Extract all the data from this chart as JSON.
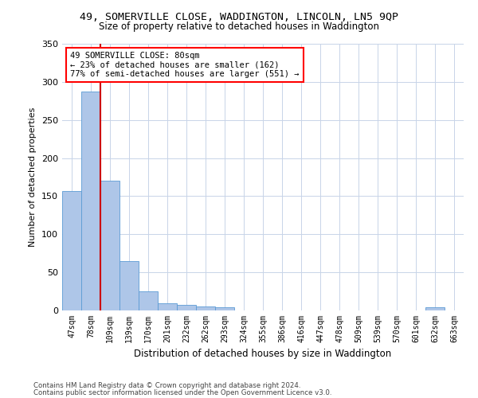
{
  "title1": "49, SOMERVILLE CLOSE, WADDINGTON, LINCOLN, LN5 9QP",
  "title2": "Size of property relative to detached houses in Waddington",
  "xlabel": "Distribution of detached houses by size in Waddington",
  "ylabel": "Number of detached properties",
  "bar_labels": [
    "47sqm",
    "78sqm",
    "109sqm",
    "139sqm",
    "170sqm",
    "201sqm",
    "232sqm",
    "262sqm",
    "293sqm",
    "324sqm",
    "355sqm",
    "386sqm",
    "416sqm",
    "447sqm",
    "478sqm",
    "509sqm",
    "539sqm",
    "570sqm",
    "601sqm",
    "632sqm",
    "663sqm"
  ],
  "bar_values": [
    157,
    287,
    170,
    65,
    25,
    9,
    7,
    5,
    4,
    0,
    0,
    0,
    0,
    0,
    0,
    0,
    0,
    0,
    0,
    4,
    0
  ],
  "bar_color": "#aec6e8",
  "bar_edge_color": "#5b9bd5",
  "vline_color": "#cc0000",
  "annotation_box_text": "49 SOMERVILLE CLOSE: 80sqm\n← 23% of detached houses are smaller (162)\n77% of semi-detached houses are larger (551) →",
  "background_color": "#ffffff",
  "grid_color": "#c8d4e8",
  "ylim": [
    0,
    350
  ],
  "yticks": [
    0,
    50,
    100,
    150,
    200,
    250,
    300,
    350
  ],
  "footer1": "Contains HM Land Registry data © Crown copyright and database right 2024.",
  "footer2": "Contains public sector information licensed under the Open Government Licence v3.0."
}
